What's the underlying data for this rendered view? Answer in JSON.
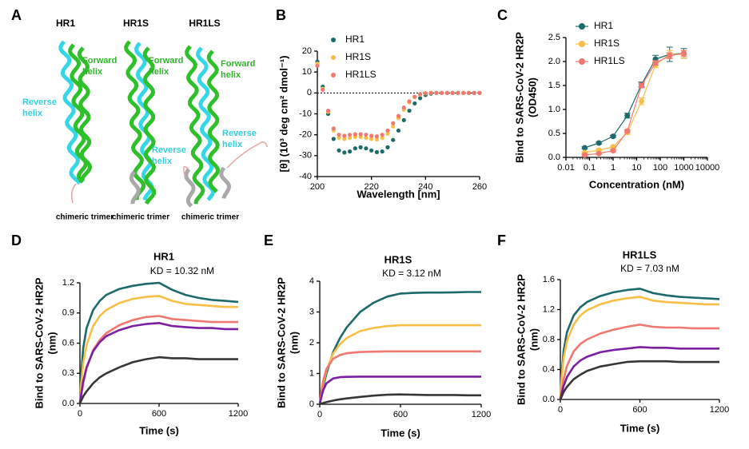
{
  "structure": {
    "panel": "A",
    "constructs": [
      {
        "name": "HR1",
        "forward": [
          "Forward",
          "helix"
        ],
        "reverse": [
          "Reverse",
          "helix"
        ],
        "caption": "chimeric trimer"
      },
      {
        "name": "HR1S",
        "forward": [
          "Forward",
          "helix"
        ],
        "reverse": [
          "Reverse",
          "helix"
        ],
        "caption": "chimeric trimer"
      },
      {
        "name": "HR1LS",
        "forward": [
          "Forward",
          "helix"
        ],
        "reverse": [
          "Reverse",
          "helix"
        ],
        "caption": "chimeric trimer"
      }
    ]
  },
  "chart_data": [
    {
      "type": "scatter",
      "panel": "B",
      "xlabel": "Wavelength [nm]",
      "ylabel": [
        "[θ] (10³ deg cm² dmol⁻¹)"
      ],
      "x": [
        200,
        202,
        204,
        206,
        208,
        210,
        212,
        214,
        216,
        218,
        220,
        222,
        224,
        226,
        228,
        230,
        232,
        234,
        236,
        238,
        240,
        242,
        244,
        246,
        248,
        250,
        252,
        254,
        256,
        258,
        260
      ],
      "xlim": [
        200,
        260
      ],
      "xticks": [
        200,
        220,
        240,
        260
      ],
      "ylim": [
        -40,
        20
      ],
      "yticks": [
        -40,
        -30,
        -20,
        -10,
        0,
        10,
        20
      ],
      "hline": 0,
      "legend": "top-left",
      "series": [
        {
          "name": "HR1",
          "color": "#1d6a6b",
          "values": [
            15,
            3,
            -10,
            -22,
            -27.5,
            -28.5,
            -28,
            -26.5,
            -26,
            -26.5,
            -27.5,
            -28.3,
            -28,
            -26,
            -22.5,
            -18,
            -13,
            -8.5,
            -5,
            -2.5,
            -1,
            -0.3,
            0,
            0,
            0,
            0,
            0,
            0,
            0,
            0,
            0
          ]
        },
        {
          "name": "HR1S",
          "color": "#f7bf45",
          "values": [
            14,
            2,
            -9,
            -18,
            -21.5,
            -22,
            -21.5,
            -21,
            -21,
            -21.5,
            -22,
            -22.2,
            -21.5,
            -19.5,
            -16,
            -12,
            -8,
            -4.5,
            -2,
            -0.8,
            -0.2,
            0,
            0,
            0,
            0,
            0,
            0,
            0,
            0,
            0,
            0
          ]
        },
        {
          "name": "HR1LS",
          "color": "#f07870",
          "values": [
            13,
            1.5,
            -8.5,
            -17,
            -20,
            -20.5,
            -20,
            -19.8,
            -19.8,
            -20,
            -20.5,
            -20.8,
            -20,
            -18,
            -14.5,
            -11,
            -7,
            -4,
            -1.8,
            -0.6,
            -0.1,
            0,
            0,
            0,
            0,
            0,
            0,
            0,
            0,
            0,
            0
          ]
        }
      ]
    },
    {
      "type": "line",
      "panel": "C",
      "xlabel": "Concentration (nM)",
      "ylabel": [
        "Bind to SARS-CoV-2 HR2P",
        "(OD450)"
      ],
      "x": [
        0.0625,
        0.25,
        1,
        4,
        16,
        62.5,
        250,
        1000
      ],
      "xscale": "log",
      "xlim": [
        0.01,
        10000
      ],
      "xticks": [
        0.01,
        0.1,
        1,
        10,
        100,
        1000,
        10000
      ],
      "ylim": [
        0,
        2.5
      ],
      "yticks": [
        {
          "value": 0,
          "label": "0.0"
        },
        {
          "value": 0.5,
          "label": "0.5"
        },
        {
          "value": 1,
          "label": "1.0"
        },
        {
          "value": 1.5,
          "label": "1.5"
        },
        {
          "value": 2,
          "label": "2.0"
        },
        {
          "value": 2.5,
          "label": "2.5"
        }
      ],
      "legend": "top-left",
      "markers": true,
      "series": [
        {
          "name": "HR1",
          "color": "#1d6a6b",
          "values": [
            0.2,
            0.3,
            0.44,
            0.87,
            1.52,
            2.05,
            2.15,
            2.17
          ],
          "errors": [
            0.02,
            0.02,
            0.02,
            0.05,
            0.05,
            0.08,
            0.15,
            0.1
          ]
        },
        {
          "name": "HR1S",
          "color": "#f7bf45",
          "values": [
            0.1,
            0.15,
            0.22,
            0.52,
            1.17,
            1.93,
            2.15,
            2.15
          ],
          "errors": [
            0.02,
            0.02,
            0.02,
            0.04,
            0.07,
            0.06,
            0.08,
            0.08
          ]
        },
        {
          "name": "HR1LS",
          "color": "#f07870",
          "values": [
            0.05,
            0.08,
            0.14,
            0.55,
            1.5,
            1.97,
            2.12,
            2.17
          ],
          "errors": [
            0.02,
            0.02,
            0.02,
            0.03,
            0.05,
            0.05,
            0.06,
            0.06
          ]
        }
      ]
    },
    {
      "type": "line",
      "panel": "D",
      "title": "HR1",
      "annotation": "KD = 10.32 nM",
      "xlabel": "Time (s)",
      "ylabel": [
        "Bind to SARS-CoV-2 HR2P",
        "(nm)"
      ],
      "x": [
        0,
        10,
        25,
        50,
        100,
        150,
        200,
        300,
        400,
        500,
        600,
        700,
        800,
        900,
        1000,
        1100,
        1200
      ],
      "xlim": [
        0,
        1200
      ],
      "xticks": [
        0,
        600,
        1200
      ],
      "ylim": [
        0,
        1.2
      ],
      "yticks": [
        {
          "value": 0,
          "label": "0.0"
        },
        {
          "value": 0.3,
          "label": "0.3"
        },
        {
          "value": 0.6,
          "label": "0.6"
        },
        {
          "value": 0.9,
          "label": "0.9"
        },
        {
          "value": 1.2,
          "label": "1.2"
        }
      ],
      "series": [
        {
          "color": "#1d6a6b",
          "values": [
            0,
            0.3,
            0.55,
            0.75,
            0.93,
            1.02,
            1.08,
            1.14,
            1.17,
            1.19,
            1.2,
            1.13,
            1.08,
            1.05,
            1.03,
            1.02,
            1.01
          ]
        },
        {
          "color": "#f7bf45",
          "values": [
            0,
            0.2,
            0.4,
            0.58,
            0.77,
            0.87,
            0.93,
            1.0,
            1.04,
            1.06,
            1.07,
            1.02,
            0.99,
            0.98,
            0.97,
            0.96,
            0.96
          ]
        },
        {
          "color": "#f07870",
          "values": [
            0,
            0.08,
            0.2,
            0.35,
            0.53,
            0.63,
            0.7,
            0.78,
            0.83,
            0.86,
            0.87,
            0.84,
            0.83,
            0.82,
            0.81,
            0.81,
            0.81
          ]
        },
        {
          "color": "#7d1fa3",
          "values": [
            0,
            0.1,
            0.22,
            0.36,
            0.52,
            0.61,
            0.67,
            0.73,
            0.77,
            0.79,
            0.8,
            0.77,
            0.76,
            0.75,
            0.75,
            0.74,
            0.74
          ]
        },
        {
          "color": "#363636",
          "values": [
            0,
            0.03,
            0.07,
            0.12,
            0.2,
            0.26,
            0.3,
            0.36,
            0.41,
            0.44,
            0.46,
            0.45,
            0.45,
            0.44,
            0.44,
            0.44,
            0.44
          ]
        }
      ]
    },
    {
      "type": "line",
      "panel": "E",
      "title": "HR1S",
      "annotation": "KD = 3.12 nM",
      "xlabel": "Time (s)",
      "ylabel": [
        "Bind to SARS-CoV-2 HR2P",
        "(nm)"
      ],
      "x": [
        0,
        10,
        25,
        50,
        100,
        150,
        200,
        300,
        400,
        500,
        600,
        700,
        800,
        900,
        1000,
        1100,
        1200
      ],
      "xlim": [
        0,
        1200
      ],
      "xticks": [
        0,
        600,
        1200
      ],
      "ylim": [
        0,
        4
      ],
      "yticks": [
        0,
        1,
        2,
        3,
        4
      ],
      "series": [
        {
          "color": "#1d6a6b",
          "values": [
            0,
            0.25,
            0.55,
            1.0,
            1.7,
            2.15,
            2.5,
            3.0,
            3.3,
            3.5,
            3.6,
            3.62,
            3.63,
            3.63,
            3.64,
            3.65,
            3.65
          ]
        },
        {
          "color": "#f7bf45",
          "values": [
            0,
            0.3,
            0.65,
            1.1,
            1.65,
            1.95,
            2.15,
            2.38,
            2.48,
            2.54,
            2.57,
            2.57,
            2.57,
            2.57,
            2.57,
            2.57,
            2.57
          ]
        },
        {
          "color": "#f07870",
          "values": [
            0,
            0.35,
            0.75,
            1.15,
            1.48,
            1.6,
            1.66,
            1.7,
            1.71,
            1.72,
            1.72,
            1.72,
            1.72,
            1.72,
            1.72,
            1.72,
            1.72
          ]
        },
        {
          "color": "#7d1fa3",
          "values": [
            0,
            0.2,
            0.45,
            0.68,
            0.84,
            0.88,
            0.89,
            0.9,
            0.9,
            0.9,
            0.9,
            0.9,
            0.9,
            0.9,
            0.9,
            0.9,
            0.9
          ]
        },
        {
          "color": "#363636",
          "values": [
            0,
            0.02,
            0.04,
            0.07,
            0.12,
            0.16,
            0.19,
            0.24,
            0.28,
            0.31,
            0.32,
            0.31,
            0.3,
            0.3,
            0.3,
            0.29,
            0.29
          ]
        }
      ]
    },
    {
      "type": "line",
      "panel": "F",
      "title": "HR1LS",
      "annotation": "KD = 7.03 nM",
      "xlabel": "Time (s)",
      "ylabel": [
        "Bind to SARS-CoV-2 HR2P",
        "(nm)"
      ],
      "x": [
        0,
        10,
        25,
        50,
        100,
        150,
        200,
        300,
        400,
        500,
        600,
        700,
        800,
        900,
        1000,
        1100,
        1200
      ],
      "xlim": [
        0,
        1200
      ],
      "xticks": [
        0,
        600,
        1200
      ],
      "ylim": [
        0,
        1.6
      ],
      "yticks": [
        {
          "value": 0,
          "label": "0.0"
        },
        {
          "value": 0.4,
          "label": "0.4"
        },
        {
          "value": 0.8,
          "label": "0.8"
        },
        {
          "value": 1.2,
          "label": "1.2"
        },
        {
          "value": 1.6,
          "label": "1.6"
        }
      ],
      "series": [
        {
          "color": "#1d6a6b",
          "values": [
            0,
            0.35,
            0.65,
            0.9,
            1.12,
            1.23,
            1.3,
            1.38,
            1.43,
            1.46,
            1.48,
            1.42,
            1.39,
            1.37,
            1.36,
            1.35,
            1.34
          ]
        },
        {
          "color": "#f7bf45",
          "values": [
            0,
            0.3,
            0.55,
            0.78,
            1.0,
            1.12,
            1.19,
            1.27,
            1.32,
            1.35,
            1.37,
            1.32,
            1.3,
            1.29,
            1.28,
            1.27,
            1.27
          ]
        },
        {
          "color": "#f07870",
          "values": [
            0,
            0.12,
            0.27,
            0.45,
            0.64,
            0.74,
            0.8,
            0.88,
            0.93,
            0.97,
            1.0,
            0.97,
            0.96,
            0.96,
            0.95,
            0.95,
            0.95
          ]
        },
        {
          "color": "#7d1fa3",
          "values": [
            0,
            0.08,
            0.18,
            0.3,
            0.44,
            0.52,
            0.57,
            0.63,
            0.66,
            0.68,
            0.7,
            0.69,
            0.69,
            0.68,
            0.68,
            0.68,
            0.68
          ]
        },
        {
          "color": "#363636",
          "values": [
            0,
            0.04,
            0.1,
            0.17,
            0.27,
            0.33,
            0.38,
            0.44,
            0.47,
            0.5,
            0.51,
            0.51,
            0.51,
            0.5,
            0.5,
            0.5,
            0.5
          ]
        }
      ]
    }
  ]
}
